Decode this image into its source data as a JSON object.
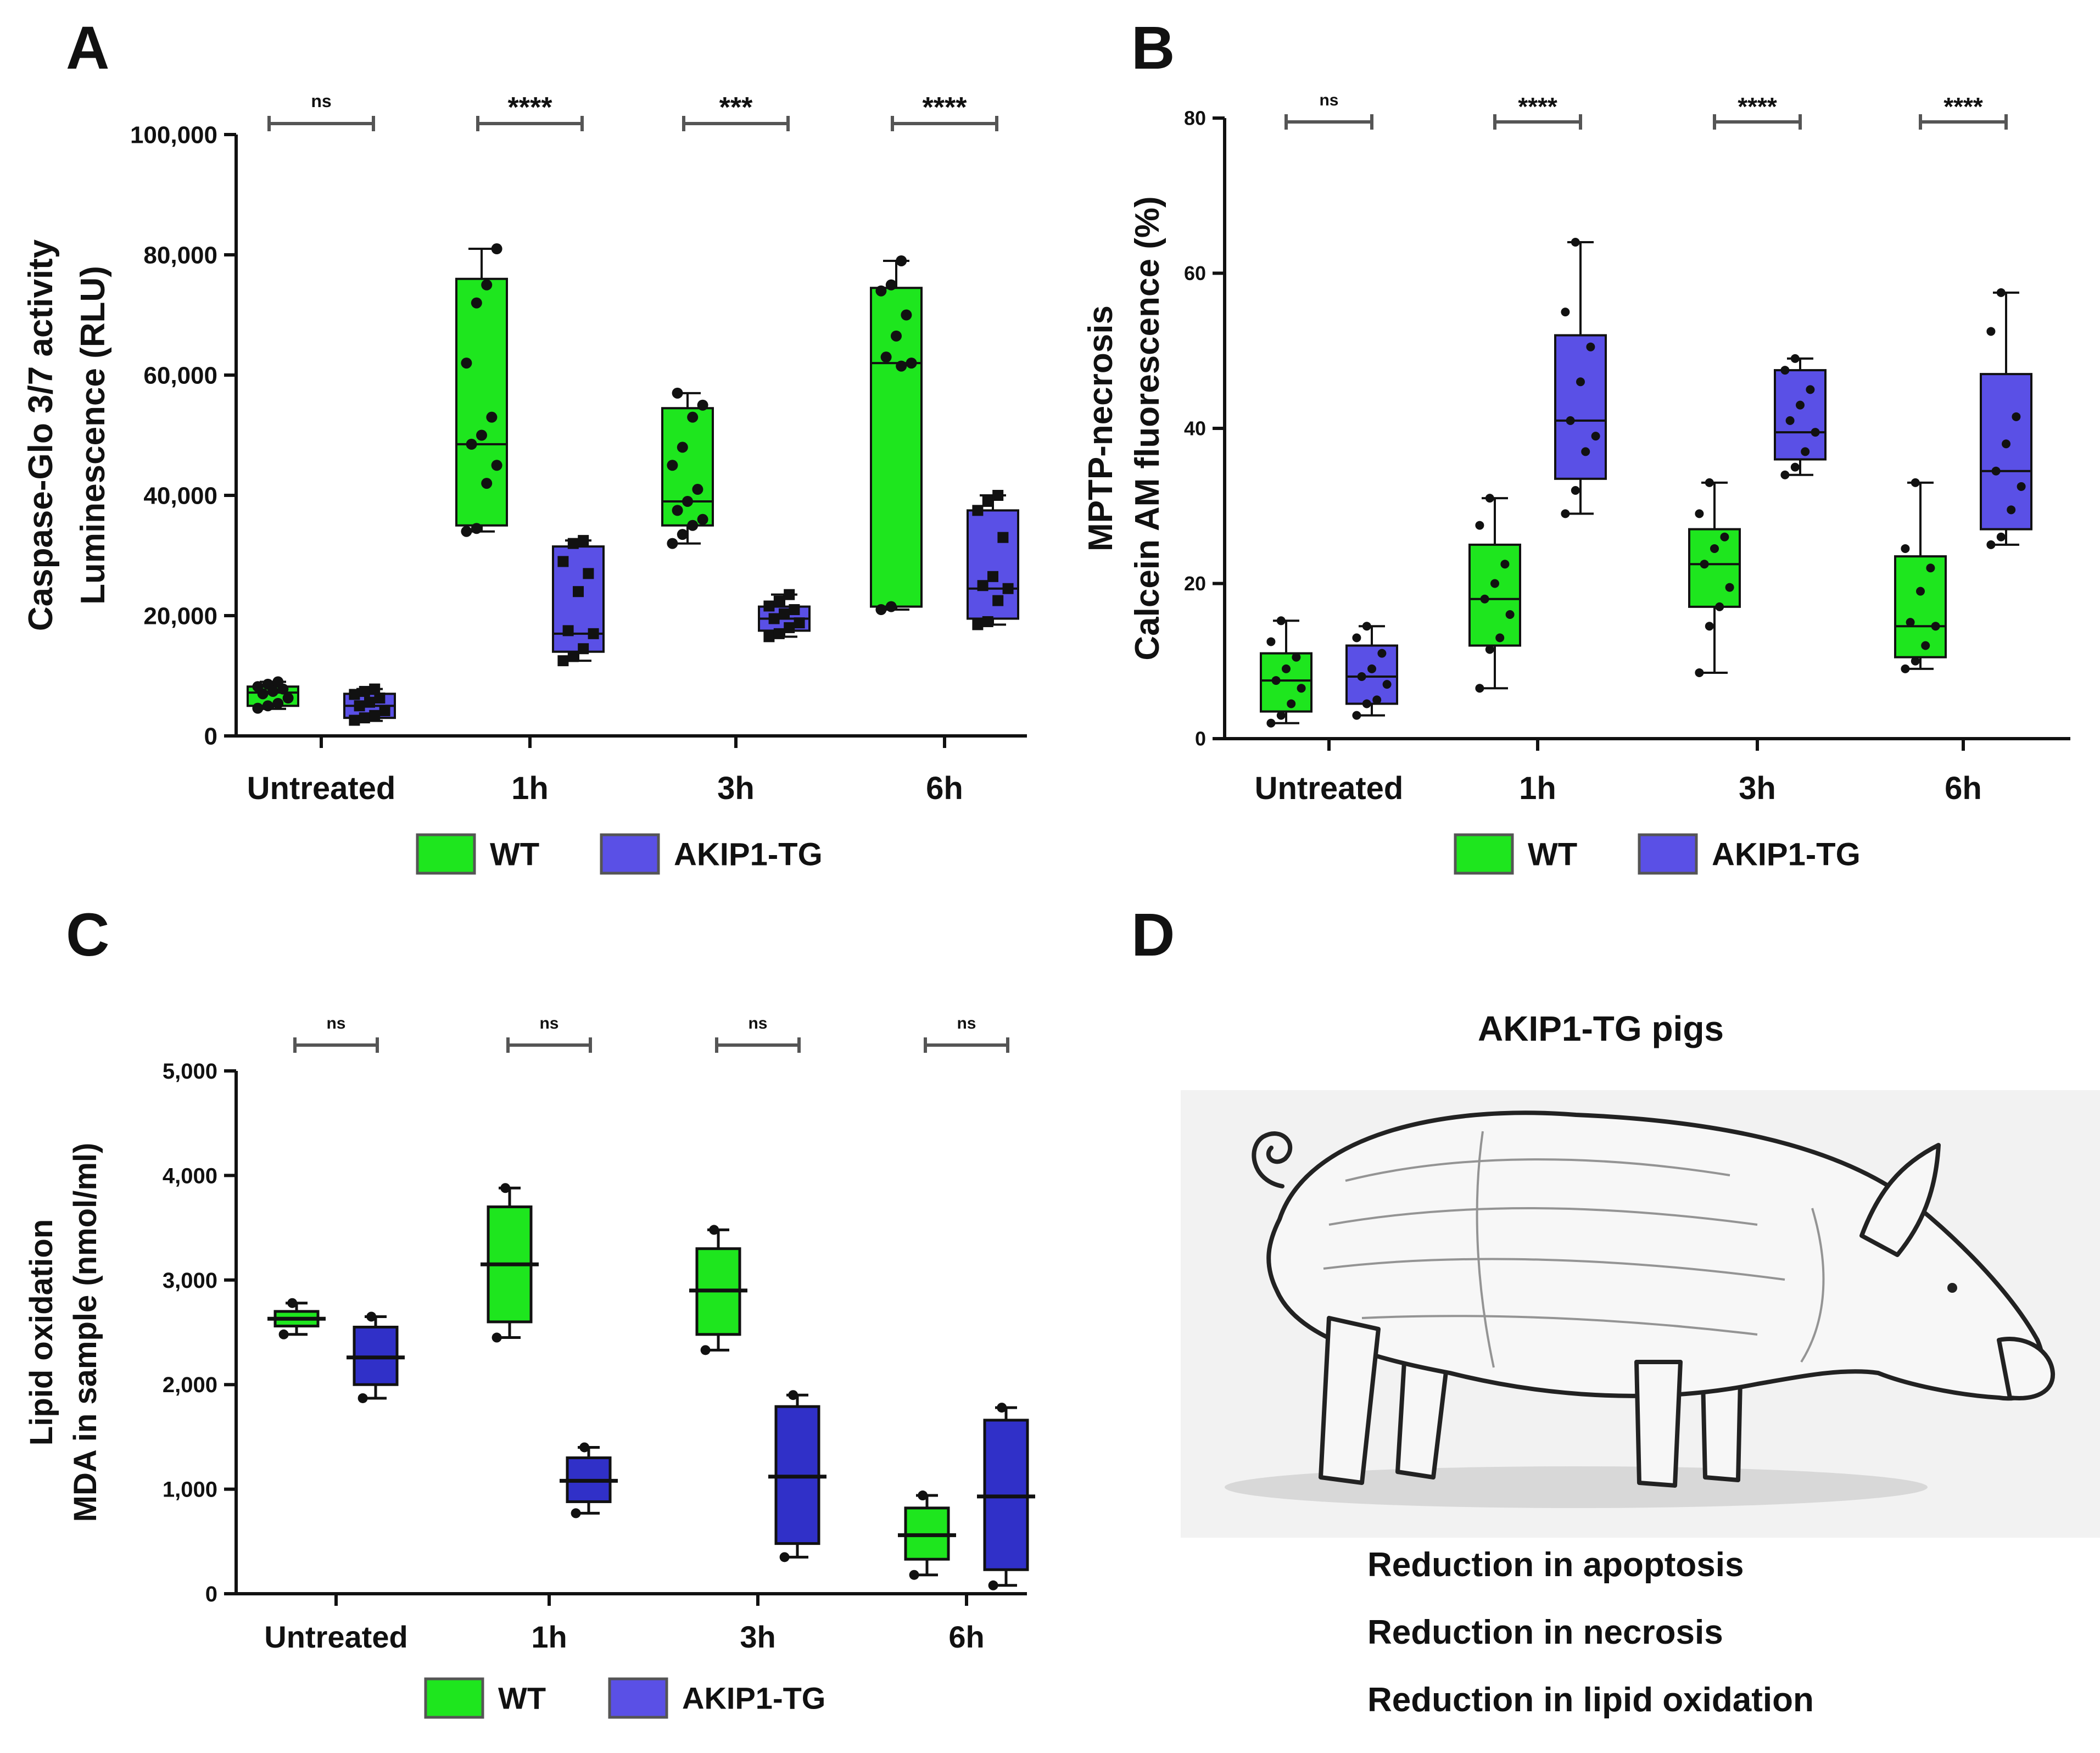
{
  "panel_letters": [
    "A",
    "B",
    "C",
    "D"
  ],
  "groups": [
    "Untreated",
    "1h",
    "3h",
    "6h"
  ],
  "legend": {
    "wt": "WT",
    "tg": "AKIP1-TG"
  },
  "colors": {
    "wt": "#1ee61e",
    "tg_light": "#5a50e6",
    "tg_dark": "#3030c8",
    "outline": "#111111",
    "sig_bar": "#555555"
  },
  "chart_data": [
    {
      "id": "A",
      "type": "box",
      "ylabel_lines": [
        "Caspase-Glo 3/7 activity",
        "Luminescence (RLU)"
      ],
      "ylim": [
        0,
        100000
      ],
      "ticks": [
        0,
        20000,
        40000,
        60000,
        80000,
        100000
      ],
      "tick_labels": [
        "0",
        "20,000",
        "40,000",
        "60,000",
        "80,000",
        "100,000"
      ],
      "categories": [
        "Untreated",
        "1h",
        "3h",
        "6h"
      ],
      "significance": [
        "ns",
        "****",
        "***",
        "****"
      ],
      "tg_color": "tg_light",
      "series": [
        {
          "name": "WT",
          "boxes": [
            {
              "min": 4500,
              "q1": 5000,
              "median": 7200,
              "q3": 8200,
              "max": 9000,
              "points": [
                4600,
                5000,
                5400,
                6300,
                7000,
                7400,
                7800,
                8200,
                8600,
                9000
              ]
            },
            {
              "min": 34000,
              "q1": 35000,
              "median": 48500,
              "q3": 76000,
              "max": 81000,
              "points": [
                34000,
                34500,
                42000,
                45000,
                48500,
                50000,
                53000,
                62000,
                72000,
                75000,
                81000
              ]
            },
            {
              "min": 32000,
              "q1": 35000,
              "median": 39000,
              "q3": 54500,
              "max": 57000,
              "points": [
                32000,
                33500,
                35000,
                36000,
                37500,
                39000,
                41000,
                45000,
                48000,
                53000,
                55000,
                57000
              ]
            },
            {
              "min": 21000,
              "q1": 21500,
              "median": 62000,
              "q3": 74500,
              "max": 79000,
              "points": [
                21000,
                21500,
                61500,
                62000,
                63000,
                66500,
                70000,
                74000,
                75000,
                79000
              ]
            }
          ]
        },
        {
          "name": "AKIP1-TG",
          "boxes": [
            {
              "min": 2500,
              "q1": 3000,
              "median": 5000,
              "q3": 7000,
              "max": 7800,
              "points": [
                2600,
                3000,
                3400,
                4200,
                5000,
                5600,
                6300,
                6900,
                7400,
                7800
              ]
            },
            {
              "min": 12500,
              "q1": 14000,
              "median": 17000,
              "q3": 31500,
              "max": 32500,
              "points": [
                12500,
                13200,
                14500,
                17000,
                17500,
                24000,
                27000,
                29000,
                32000,
                32500
              ]
            },
            {
              "min": 16500,
              "q1": 17500,
              "median": 19500,
              "q3": 21500,
              "max": 23500,
              "points": [
                16500,
                17000,
                18000,
                18800,
                19500,
                20300,
                21000,
                21600,
                22400,
                23500
              ]
            },
            {
              "min": 18500,
              "q1": 19500,
              "median": 24500,
              "q3": 37500,
              "max": 40000,
              "points": [
                18500,
                19000,
                22500,
                24500,
                25000,
                26500,
                33000,
                37500,
                39000,
                40000
              ]
            }
          ]
        }
      ]
    },
    {
      "id": "B",
      "type": "box",
      "ylabel_lines": [
        "MPTP-necrosis",
        "Calcein AM fluorescence (%)"
      ],
      "ylim": [
        0,
        80
      ],
      "ticks": [
        0,
        20,
        40,
        60,
        80
      ],
      "tick_labels": [
        "0",
        "20",
        "40",
        "60",
        "80"
      ],
      "categories": [
        "Untreated",
        "1h",
        "3h",
        "6h"
      ],
      "significance": [
        "ns",
        "****",
        "****",
        "****"
      ],
      "tg_color": "tg_light",
      "series": [
        {
          "name": "WT",
          "boxes": [
            {
              "min": 2,
              "q1": 3.5,
              "median": 7.5,
              "q3": 11,
              "max": 15.2,
              "points": [
                2,
                3,
                4.5,
                6.5,
                7.5,
                9,
                10.5,
                12.5,
                15.2
              ]
            },
            {
              "min": 6.5,
              "q1": 12,
              "median": 18,
              "q3": 25,
              "max": 31,
              "points": [
                6.5,
                11.5,
                13,
                16,
                18,
                20,
                22.5,
                27.5,
                31
              ]
            },
            {
              "min": 8.5,
              "q1": 17,
              "median": 22.5,
              "q3": 27,
              "max": 33,
              "points": [
                8.5,
                14.5,
                17,
                19.5,
                22.5,
                24.5,
                26,
                29,
                33
              ]
            },
            {
              "min": 9,
              "q1": 10.5,
              "median": 14.5,
              "q3": 23.5,
              "max": 33,
              "points": [
                9,
                10,
                12,
                14.5,
                15,
                19,
                22,
                24.5,
                33
              ]
            }
          ]
        },
        {
          "name": "AKIP1-TG",
          "boxes": [
            {
              "min": 3,
              "q1": 4.5,
              "median": 8,
              "q3": 12,
              "max": 14.5,
              "points": [
                3,
                4.5,
                5,
                7,
                8,
                9,
                11,
                13,
                14.5
              ]
            },
            {
              "min": 29,
              "q1": 33.5,
              "median": 41,
              "q3": 52,
              "max": 64,
              "points": [
                29,
                32,
                37,
                39,
                41,
                46,
                50.5,
                55,
                64
              ]
            },
            {
              "min": 34,
              "q1": 36,
              "median": 39.5,
              "q3": 47.5,
              "max": 49,
              "points": [
                34,
                35,
                37,
                39.5,
                41,
                43,
                45,
                47.5,
                49
              ]
            },
            {
              "min": 25,
              "q1": 27,
              "median": 34.5,
              "q3": 47,
              "max": 57.5,
              "points": [
                25,
                26,
                29.5,
                32.5,
                34.5,
                38,
                41.5,
                52.5,
                57.5
              ]
            }
          ]
        }
      ]
    },
    {
      "id": "C",
      "type": "box",
      "ylabel_lines": [
        "Lipid oxidation",
        "MDA in sample (nmol/ml)"
      ],
      "ylim": [
        0,
        5000
      ],
      "ticks": [
        0,
        1000,
        2000,
        3000,
        4000,
        5000
      ],
      "tick_labels": [
        "0",
        "1,000",
        "2,000",
        "3,000",
        "4,000",
        "5,000"
      ],
      "categories": [
        "Untreated",
        "1h",
        "3h",
        "6h"
      ],
      "significance": [
        "ns",
        "ns",
        "ns",
        "ns"
      ],
      "tg_color": "tg_dark",
      "series": [
        {
          "name": "WT",
          "boxes": [
            {
              "min": 2480,
              "q1": 2560,
              "median": 2630,
              "q3": 2700,
              "max": 2780,
              "points": [
                2480,
                2780
              ]
            },
            {
              "min": 2450,
              "q1": 2600,
              "median": 3150,
              "q3": 3700,
              "max": 3880,
              "points": [
                2450,
                3880
              ]
            },
            {
              "min": 2330,
              "q1": 2480,
              "median": 2900,
              "q3": 3300,
              "max": 3480,
              "points": [
                2330,
                3480
              ]
            },
            {
              "min": 180,
              "q1": 330,
              "median": 560,
              "q3": 820,
              "max": 940,
              "points": [
                180,
                940
              ]
            }
          ]
        },
        {
          "name": "AKIP1-TG",
          "boxes": [
            {
              "min": 1870,
              "q1": 2000,
              "median": 2260,
              "q3": 2550,
              "max": 2650,
              "points": [
                1870,
                2650
              ]
            },
            {
              "min": 770,
              "q1": 880,
              "median": 1080,
              "q3": 1300,
              "max": 1400,
              "points": [
                770,
                1400
              ]
            },
            {
              "min": 350,
              "q1": 480,
              "median": 1120,
              "q3": 1790,
              "max": 1900,
              "points": [
                350,
                1900
              ]
            },
            {
              "min": 80,
              "q1": 230,
              "median": 930,
              "q3": 1660,
              "max": 1780,
              "points": [
                80,
                1780
              ]
            }
          ]
        }
      ]
    }
  ],
  "panel_d": {
    "title": "AKIP1-TG pigs",
    "bullets": [
      "Reduction in apoptosis",
      "Reduction in necrosis",
      "Reduction in lipid oxidation"
    ]
  },
  "illustration": {
    "icon": "pig-illustration-icon"
  }
}
